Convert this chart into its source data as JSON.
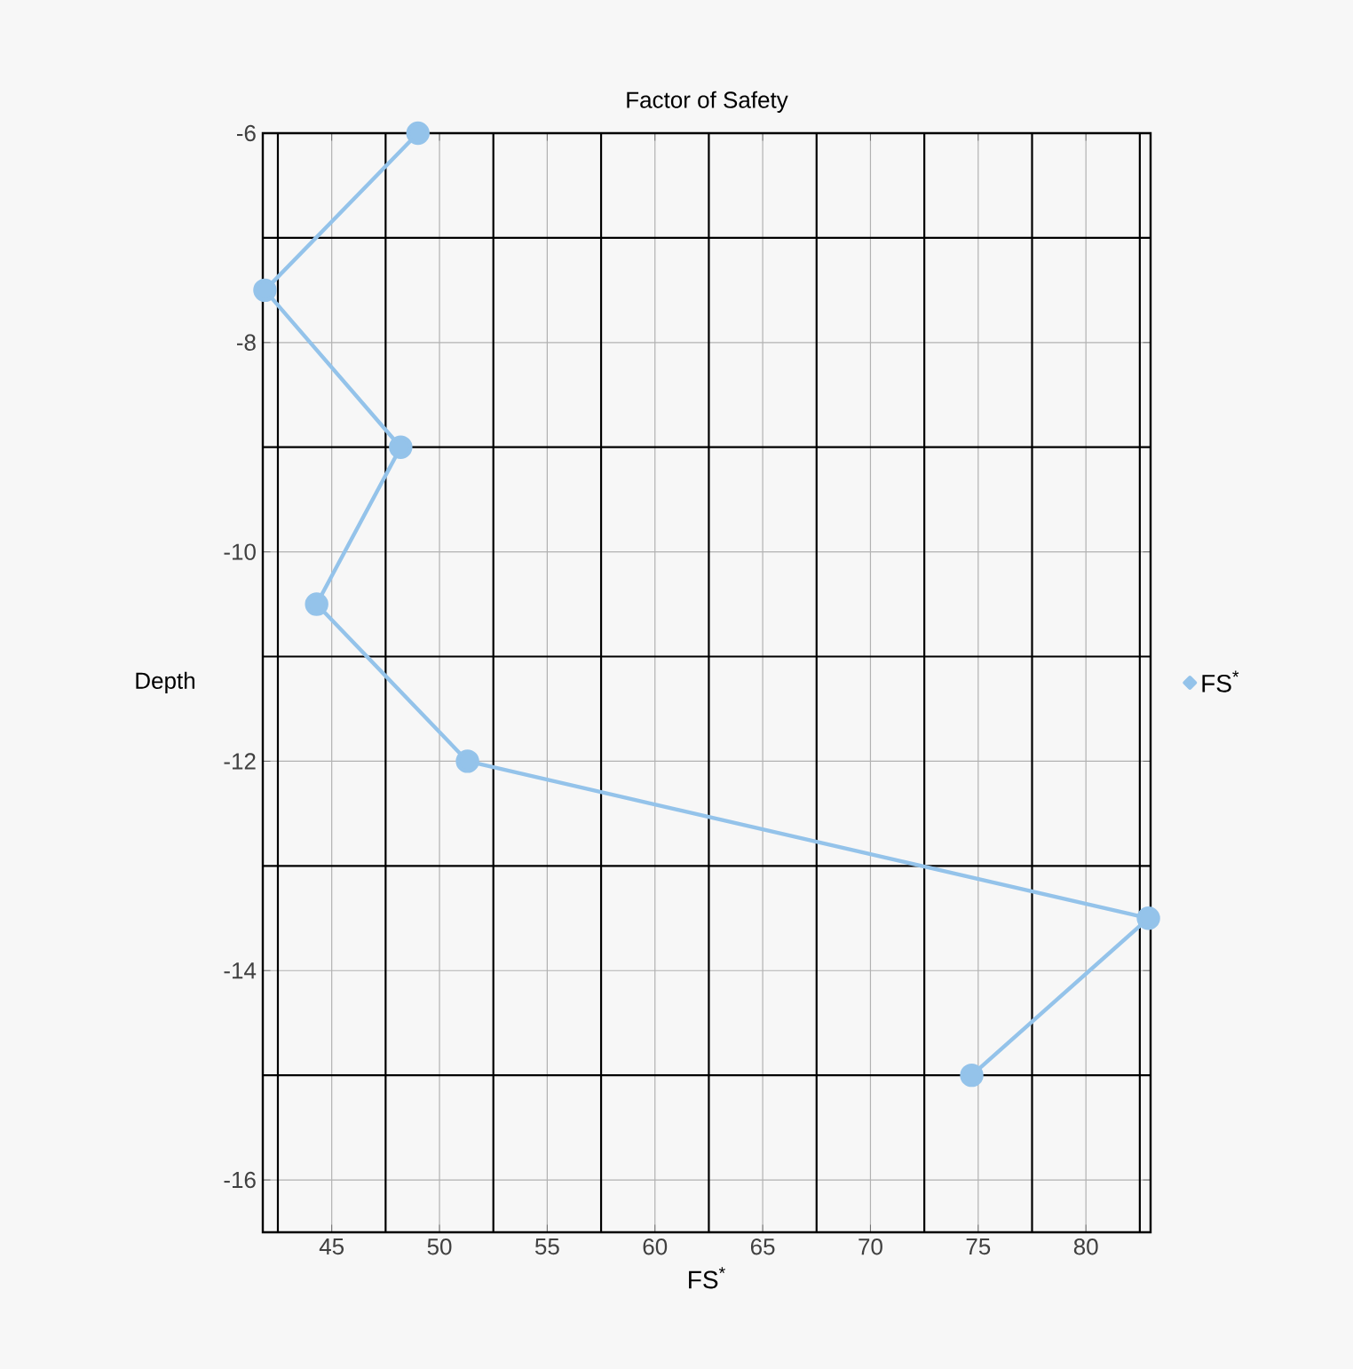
{
  "chart_data": {
    "type": "line",
    "title": "Factor of Safety",
    "xlabel": "FS$^{*}$",
    "ylabel": "Depth",
    "x": [
      49.0,
      41.9,
      48.2,
      44.3,
      51.3,
      82.9,
      74.7
    ],
    "series": [
      {
        "name": "FS$^{*}$",
        "color": "#94c3ea",
        "values": [
          -6,
          -7.5,
          -9,
          -10.5,
          -12,
          -13.5,
          -15
        ]
      }
    ],
    "xlim": [
      41.8,
      83
    ],
    "ylim": [
      -16.5,
      -6
    ],
    "xticks": [
      45,
      50,
      55,
      60,
      65,
      70,
      75,
      80
    ],
    "yticks": [
      -6,
      -8,
      -10,
      -12,
      -14,
      -16
    ],
    "grid": true,
    "legend": "right",
    "marker": "circle",
    "line_style": "solid"
  }
}
